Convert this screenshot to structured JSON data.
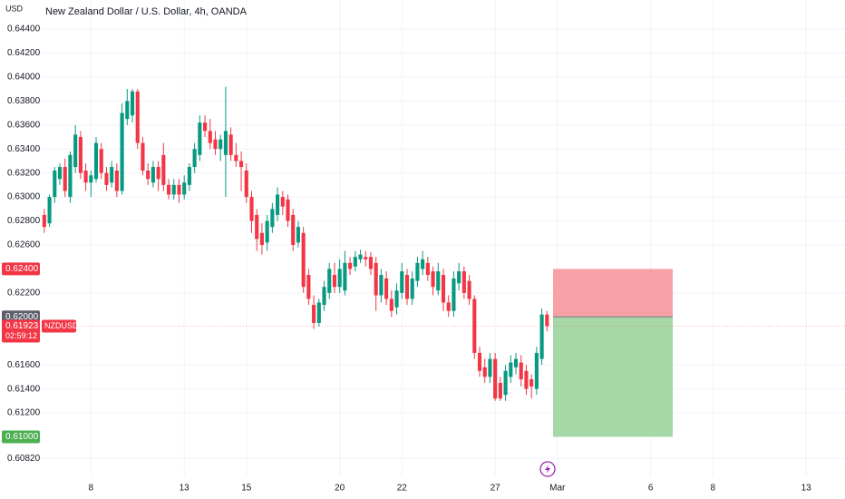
{
  "chart_data": {
    "type": "candlestick",
    "title": "New Zealand Dollar / U.S. Dollar, 4h, OANDA",
    "currency": "USD",
    "up_color": "#089981",
    "down_color": "#f23645",
    "grid": true,
    "ylim": [
      0.60671,
      0.64642
    ],
    "yticks": [
      {
        "value": 0.644,
        "label": "0.64400"
      },
      {
        "value": 0.642,
        "label": "0.64200"
      },
      {
        "value": 0.64,
        "label": "0.64000"
      },
      {
        "value": 0.638,
        "label": "0.63800"
      },
      {
        "value": 0.636,
        "label": "0.63600"
      },
      {
        "value": 0.634,
        "label": "0.63400"
      },
      {
        "value": 0.632,
        "label": "0.63200"
      },
      {
        "value": 0.63,
        "label": "0.63000"
      },
      {
        "value": 0.628,
        "label": "0.62800"
      },
      {
        "value": 0.626,
        "label": "0.62600"
      },
      {
        "value": 0.622,
        "label": "0.62200"
      },
      {
        "value": 0.616,
        "label": "0.61600"
      },
      {
        "value": 0.614,
        "label": "0.61400"
      },
      {
        "value": 0.612,
        "label": "0.61200"
      },
      {
        "value": 0.6082,
        "label": "0.60820"
      }
    ],
    "position": {
      "stop": {
        "value": 0.624,
        "label": "0.62400",
        "color": "#f23645",
        "fill": "#f7a1a7"
      },
      "entry": {
        "value": 0.62,
        "label": "0.62000",
        "color": "#5d606b"
      },
      "target": {
        "value": 0.61,
        "label": "0.61000",
        "color": "#4caf50",
        "fill": "#a5d8a6"
      }
    },
    "last_price": {
      "value": 0.61923,
      "label": "0.61923",
      "symbol": "NZDUSD",
      "countdown": "02:59:12",
      "color": "#f23645"
    },
    "categories": [
      null,
      null,
      null,
      null,
      null,
      null,
      null,
      null,
      null,
      "8",
      null,
      null,
      null,
      null,
      null,
      null,
      null,
      null,
      null,
      null,
      null,
      null,
      null,
      null,
      null,
      null,
      null,
      "13",
      null,
      null,
      null,
      null,
      null,
      null,
      null,
      null,
      null,
      null,
      null,
      "15",
      null,
      null,
      null,
      null,
      null,
      null,
      null,
      null,
      null,
      null,
      null,
      null,
      null,
      null,
      null,
      null,
      null,
      "20",
      null,
      null,
      null,
      null,
      null,
      null,
      null,
      null,
      null,
      null,
      null,
      "22",
      null,
      null,
      null,
      null,
      null,
      null,
      null,
      null,
      null,
      null,
      null,
      null,
      null,
      null,
      null,
      null,
      null,
      "27",
      null,
      null,
      null,
      null,
      null,
      null,
      null,
      null,
      null,
      null,
      null,
      "Mar",
      null,
      null,
      null,
      null,
      null,
      null,
      null,
      null,
      null,
      null,
      null,
      null,
      null,
      null,
      null,
      null,
      null,
      "6",
      null,
      null,
      null,
      null,
      null,
      null,
      null,
      null,
      null,
      null,
      null,
      "8",
      null,
      null,
      null,
      null,
      null,
      null,
      null,
      null,
      null,
      null,
      null,
      null,
      null,
      null,
      null,
      null,
      null,
      "13",
      null,
      null,
      null,
      null,
      null,
      null,
      null
    ],
    "open": [
      0.6285,
      0.6278,
      0.63,
      0.6315,
      0.6325,
      0.63,
      0.6325,
      0.635,
      0.6322,
      0.6312,
      0.6315,
      0.634,
      0.632,
      0.6312,
      0.6322,
      0.6305,
      0.6365,
      0.6368,
      0.6388,
      0.6345,
      0.6322,
      0.6312,
      0.6325,
      0.6335,
      0.631,
      0.6302,
      0.631,
      0.6302,
      0.631,
      0.6325,
      0.6335,
      0.6362,
      0.6355,
      0.6348,
      0.634,
      0.6335,
      0.6352,
      0.6335,
      0.633,
      0.6322,
      0.63,
      0.6285,
      0.627,
      0.6262,
      0.6275,
      0.6285,
      0.63,
      0.6298,
      0.6285,
      0.6262,
      0.627,
      0.6235,
      0.621,
      0.6195,
      0.621,
      0.622,
      0.6235,
      0.6225,
      0.6222,
      0.6245,
      0.6242,
      0.6248,
      0.625,
      0.625,
      0.6245,
      0.6218,
      0.6232,
      0.6215,
      0.6208,
      0.622,
      0.6235,
      0.6215,
      0.623,
      0.624,
      0.6245,
      0.6238,
      0.6222,
      0.6235,
      0.6212,
      0.6205,
      0.6228,
      0.6238,
      0.623,
      0.6215,
      0.617,
      0.6158,
      0.615,
      0.6165,
      0.6145,
      0.6135,
      0.615,
      0.6158,
      0.6162,
      0.6155,
      0.6148,
      0.614,
      0.6165,
      0.6202,
      null,
      null,
      null,
      null,
      null,
      null,
      null,
      null,
      null,
      null,
      null,
      null,
      null,
      null,
      null,
      null,
      null,
      null,
      null,
      null,
      null,
      null,
      null,
      null,
      null,
      null,
      null,
      null,
      null,
      null,
      null,
      null,
      null,
      null,
      null,
      null,
      null,
      null,
      null,
      null,
      null,
      null,
      null,
      null,
      null,
      null,
      null,
      null,
      null,
      null,
      null,
      null,
      null,
      null,
      null,
      null,
      null
    ],
    "high": [
      0.629,
      0.6302,
      0.6325,
      0.6328,
      0.6332,
      0.6338,
      0.636,
      0.6355,
      0.6328,
      0.6322,
      0.635,
      0.6345,
      0.6325,
      0.633,
      0.6328,
      0.6378,
      0.639,
      0.639,
      0.639,
      0.635,
      0.6328,
      0.633,
      0.633,
      0.6345,
      0.6315,
      0.6315,
      0.6315,
      0.6318,
      0.6328,
      0.6345,
      0.6368,
      0.6368,
      0.6365,
      0.6355,
      0.6352,
      0.6392,
      0.6358,
      0.6345,
      0.6338,
      0.6328,
      0.6305,
      0.629,
      0.6278,
      0.6285,
      0.6295,
      0.6308,
      0.6305,
      0.6302,
      0.629,
      0.628,
      0.6275,
      0.624,
      0.6218,
      0.6215,
      0.623,
      0.6245,
      0.6245,
      0.6248,
      0.6255,
      0.625,
      0.6255,
      0.6256,
      0.6255,
      0.6254,
      0.625,
      0.624,
      0.6238,
      0.6222,
      0.6228,
      0.6245,
      0.624,
      0.6238,
      0.625,
      0.6255,
      0.625,
      0.6242,
      0.6245,
      0.624,
      0.6218,
      0.6238,
      0.6245,
      0.6242,
      0.6235,
      0.6218,
      0.6175,
      0.6165,
      0.617,
      0.617,
      0.615,
      0.616,
      0.6168,
      0.617,
      0.6168,
      0.616,
      0.6152,
      0.6175,
      0.6207,
      0.6205,
      null,
      null,
      null,
      null,
      null,
      null,
      null,
      null,
      null,
      null,
      null,
      null,
      null,
      null,
      null,
      null,
      null,
      null,
      null,
      null,
      null,
      null,
      null,
      null,
      null,
      null,
      null,
      null,
      null,
      null,
      null,
      null,
      null,
      null,
      null,
      null,
      null,
      null,
      null,
      null,
      null,
      null,
      null,
      null,
      null,
      null,
      null,
      null,
      null,
      null,
      null,
      null,
      null,
      null,
      null,
      null,
      null
    ],
    "low": [
      0.627,
      0.6275,
      0.6295,
      0.631,
      0.63,
      0.6295,
      0.632,
      0.6315,
      0.6305,
      0.63,
      0.6312,
      0.6315,
      0.6305,
      0.6308,
      0.63,
      0.6302,
      0.636,
      0.6362,
      0.634,
      0.6318,
      0.631,
      0.6308,
      0.6305,
      0.6305,
      0.6298,
      0.6298,
      0.6295,
      0.6298,
      0.6305,
      0.632,
      0.633,
      0.635,
      0.634,
      0.6335,
      0.633,
      0.63,
      0.633,
      0.6325,
      0.6305,
      0.6295,
      0.627,
      0.6255,
      0.6252,
      0.6255,
      0.627,
      0.628,
      0.6285,
      0.6275,
      0.6255,
      0.6258,
      0.622,
      0.621,
      0.619,
      0.6192,
      0.6205,
      0.6215,
      0.622,
      0.622,
      0.6218,
      0.6235,
      0.6238,
      0.6245,
      0.6242,
      0.6235,
      0.6205,
      0.6212,
      0.621,
      0.62,
      0.6202,
      0.6215,
      0.621,
      0.621,
      0.6225,
      0.6235,
      0.623,
      0.6218,
      0.6218,
      0.6205,
      0.62,
      0.62,
      0.6222,
      0.6215,
      0.621,
      0.6165,
      0.615,
      0.6145,
      0.6145,
      0.613,
      0.613,
      0.613,
      0.6145,
      0.6152,
      0.6142,
      0.6135,
      0.6132,
      0.6135,
      0.616,
      0.6188,
      null,
      null,
      null,
      null,
      null,
      null,
      null,
      null,
      null,
      null,
      null,
      null,
      null,
      null,
      null,
      null,
      null,
      null,
      null,
      null,
      null,
      null,
      null,
      null,
      null,
      null,
      null,
      null,
      null,
      null,
      null,
      null,
      null,
      null,
      null,
      null,
      null,
      null,
      null,
      null,
      null,
      null,
      null,
      null,
      null,
      null,
      null,
      null,
      null,
      null,
      null,
      null,
      null,
      null,
      null,
      null,
      null
    ],
    "close": [
      0.6275,
      0.63,
      0.6322,
      0.6325,
      0.6305,
      0.6335,
      0.6352,
      0.632,
      0.6312,
      0.6318,
      0.6345,
      0.632,
      0.631,
      0.6325,
      0.6305,
      0.637,
      0.638,
      0.6388,
      0.6345,
      0.6322,
      0.6315,
      0.6325,
      0.6315,
      0.631,
      0.6302,
      0.631,
      0.6302,
      0.6312,
      0.6325,
      0.634,
      0.6362,
      0.6355,
      0.6345,
      0.634,
      0.6348,
      0.6355,
      0.6335,
      0.633,
      0.6325,
      0.63,
      0.628,
      0.6265,
      0.626,
      0.628,
      0.629,
      0.6302,
      0.6292,
      0.628,
      0.626,
      0.6275,
      0.6225,
      0.6215,
      0.6195,
      0.6212,
      0.6225,
      0.624,
      0.6225,
      0.624,
      0.6245,
      0.624,
      0.625,
      0.6252,
      0.6248,
      0.624,
      0.6218,
      0.6235,
      0.6215,
      0.6205,
      0.6222,
      0.6238,
      0.6215,
      0.6232,
      0.6245,
      0.6248,
      0.6235,
      0.6225,
      0.6238,
      0.6212,
      0.6205,
      0.6232,
      0.6238,
      0.622,
      0.6215,
      0.617,
      0.6155,
      0.615,
      0.6165,
      0.6132,
      0.6132,
      0.6155,
      0.6162,
      0.6165,
      0.6148,
      0.614,
      0.6142,
      0.617,
      0.6202,
      0.61923,
      null,
      null,
      null,
      null,
      null,
      null,
      null,
      null,
      null,
      null,
      null,
      null,
      null,
      null,
      null,
      null,
      null,
      null,
      null,
      null,
      null,
      null,
      null,
      null,
      null,
      null,
      null,
      null,
      null,
      null,
      null,
      null,
      null,
      null,
      null,
      null,
      null,
      null,
      null,
      null,
      null,
      null,
      null,
      null,
      null,
      null,
      null,
      null,
      null,
      null,
      null,
      null,
      null,
      null,
      null,
      null,
      null
    ]
  }
}
